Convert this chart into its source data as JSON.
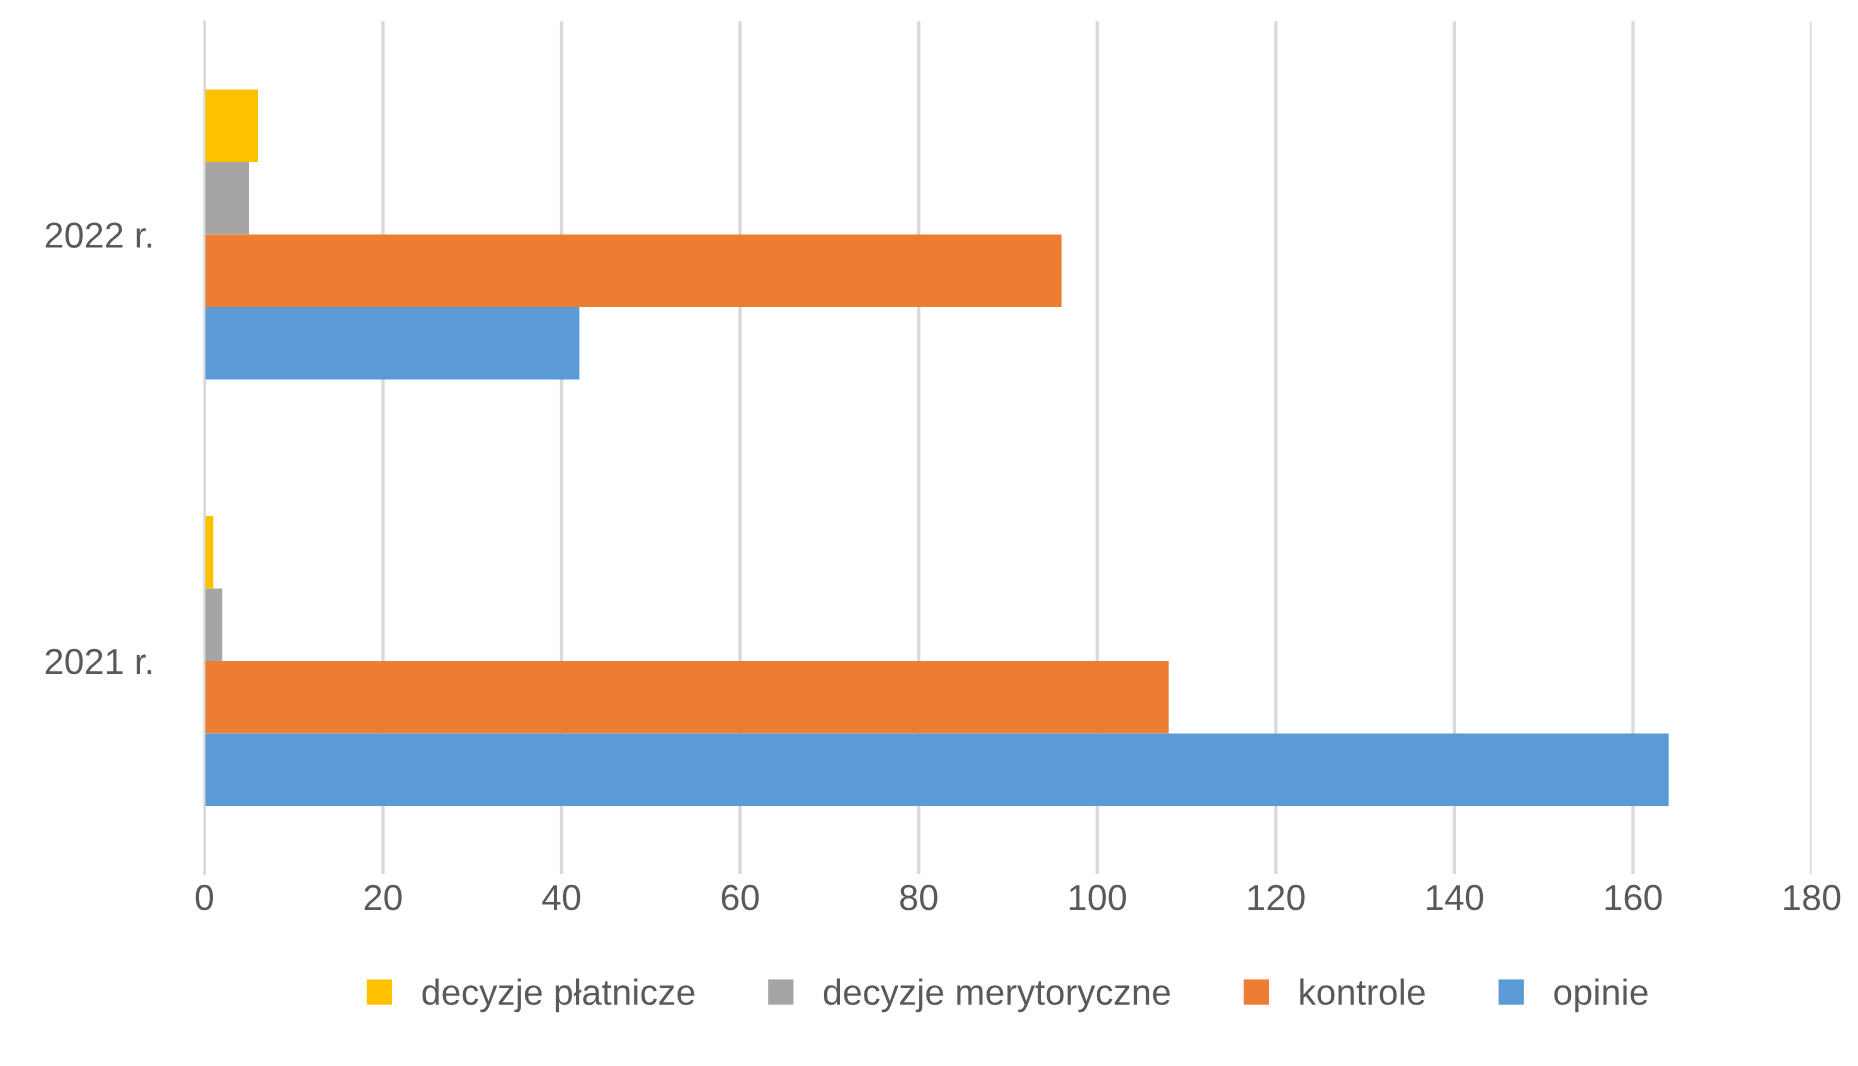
{
  "chart_data": {
    "type": "bar",
    "orientation": "horizontal",
    "categories": [
      "2022 r.",
      "2021 r."
    ],
    "series": [
      {
        "name": "decyzje płatnicze",
        "color": "#ffc000",
        "values": [
          6,
          1
        ]
      },
      {
        "name": "decyzje merytoryczne",
        "color": "#a5a5a5",
        "values": [
          5,
          2
        ]
      },
      {
        "name": "kontrole",
        "color": "#ed7d31",
        "values": [
          96,
          108
        ]
      },
      {
        "name": "opinie",
        "color": "#5b9bd5",
        "values": [
          42,
          164
        ]
      }
    ],
    "xlim": [
      0,
      180
    ],
    "xticks": [
      0,
      20,
      40,
      60,
      80,
      100,
      120,
      140,
      160,
      180
    ],
    "grid": "x",
    "legend": "bottom"
  }
}
